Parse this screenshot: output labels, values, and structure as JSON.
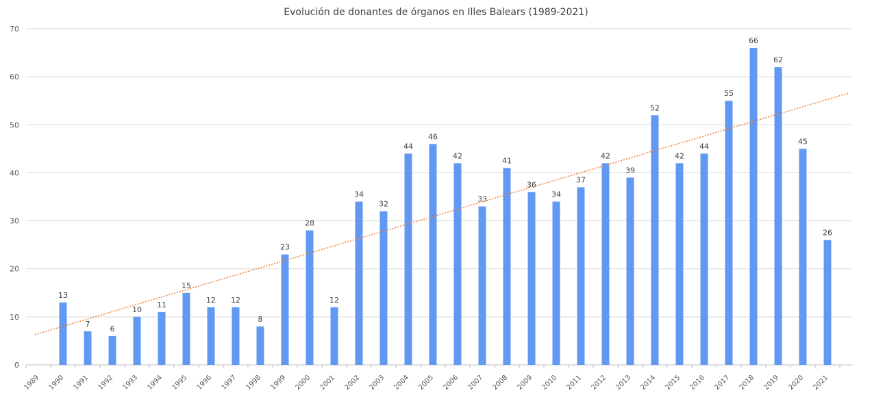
{
  "chart_data": {
    "type": "bar",
    "title": "Evolución de donantes de órganos en Illes Balears (1989-2021)",
    "categories": [
      "1989",
      "1990",
      "1991",
      "1992",
      "1993",
      "1994",
      "1995",
      "1996",
      "1997",
      "1998",
      "1999",
      "2000",
      "2001",
      "2002",
      "2003",
      "2004",
      "2005",
      "2006",
      "2007",
      "2008",
      "2009",
      "2010",
      "2011",
      "2012",
      "2013",
      "2014",
      "2015",
      "2016",
      "2017",
      "2018",
      "2019",
      "2020",
      "2021"
    ],
    "values": [
      null,
      13,
      7,
      6,
      10,
      11,
      15,
      12,
      12,
      8,
      23,
      28,
      12,
      34,
      32,
      44,
      46,
      42,
      33,
      41,
      36,
      34,
      37,
      42,
      39,
      52,
      42,
      44,
      55,
      66,
      62,
      45,
      26
    ],
    "data_labels": [
      "",
      "13",
      "7",
      "6",
      "10",
      "11",
      "15",
      "12",
      "12",
      "8",
      "23",
      "28",
      "12",
      "34",
      "32",
      "44",
      "46",
      "42",
      "33",
      "41",
      "36",
      "34",
      "37",
      "42",
      "39",
      "52",
      "42",
      "44",
      "55",
      "66",
      "62",
      "45",
      "26"
    ],
    "ylim": [
      0,
      70
    ],
    "yticks": [
      "0",
      "10",
      "20",
      "30",
      "40",
      "50",
      "60",
      "70"
    ],
    "grid": true,
    "trendline": {
      "type": "linear",
      "style": "dotted",
      "color": "#ED7D31",
      "start_value": 6.3,
      "end_value": 56.6
    },
    "colors": {
      "bar": "#6199F2",
      "grid": "#D9D9D9",
      "axis": "#BFBFBF"
    }
  }
}
